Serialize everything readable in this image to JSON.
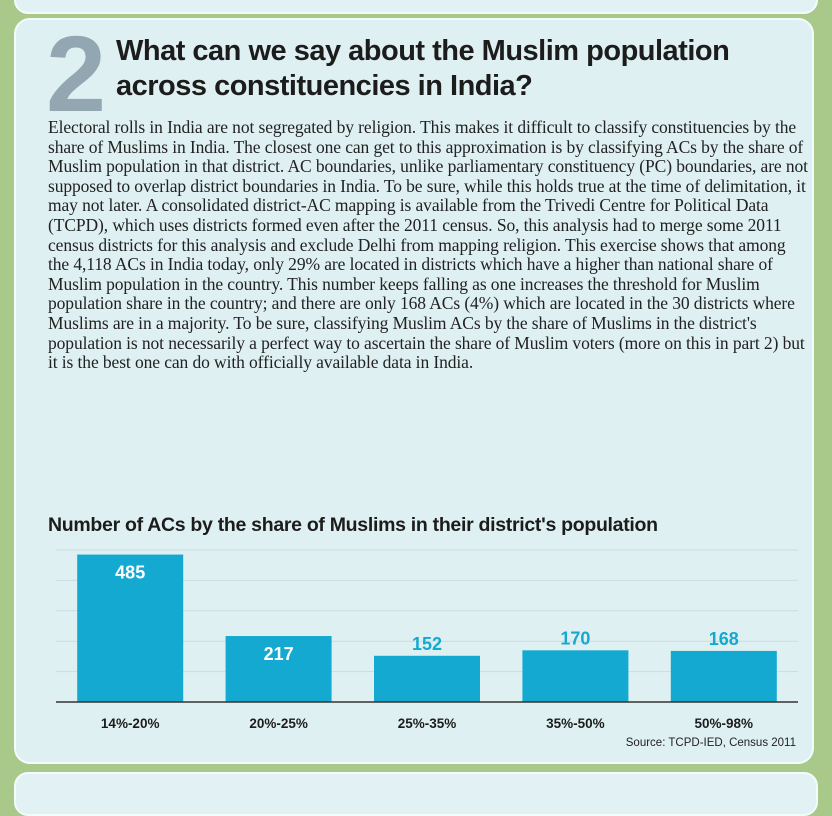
{
  "section_number": "2",
  "heading": "What can we say about the Muslim population across constituencies in India?",
  "body": "Electoral rolls in India are not segregated by religion. This makes it difficult to classify constituencies by the share of Muslims in India. The closest one can get to this approximation is by classifying ACs by the share of Muslim population in that district. AC boundaries, unlike parliamentary constituency (PC) boundaries, are not supposed to overlap district boundaries in India. To be sure, while this holds true at the time of delimitation, it may not later. A consolidated district-AC mapping is available from the Trivedi Centre for Political Data (TCPD), which uses districts formed even after the 2011 census. So, this analysis had to merge some 2011 census districts for this analysis and exclude Delhi from mapping religion. This exercise shows that among the 4,118 ACs in India today, only 29% are located in districts which have a higher than national share of Muslim population in the country. This number keeps falling as one increases the threshold for Muslim population share in the country; and there are only 168 ACs (4%) which are located in the 30 districts where Muslims are in a majority. To be sure, classifying Muslim ACs by the share of Muslims in the district's population is not necessarily a perfect way to ascertain the share of Muslim voters (more on this in part 2) but it is the best one can do with officially available data in India.",
  "chart_data": {
    "type": "bar",
    "title": "Number of ACs by the share of Muslims in their district's population",
    "categories": [
      "14%-20%",
      "20%-25%",
      "25%-35%",
      "35%-50%",
      "50%-98%"
    ],
    "values": [
      485,
      217,
      152,
      170,
      168
    ],
    "ylim": [
      0,
      500
    ],
    "grid": true,
    "source": "Source: TCPD-IED, Census 2011",
    "colors": {
      "bar": "#14a9d0",
      "label_inside": "#ffffff",
      "label_outside": "#14a9d0",
      "grid": "#c9dee2",
      "axis": "#333333"
    }
  }
}
